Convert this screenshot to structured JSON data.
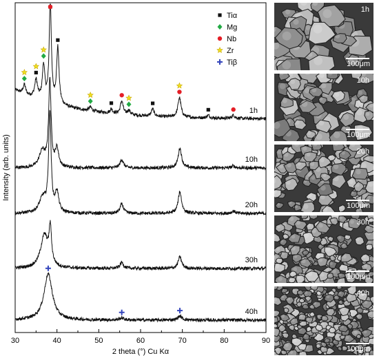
{
  "chart_data": {
    "type": "line",
    "xlabel": "2 theta (°) Cu Kα",
    "ylabel": "Intensity (arb. units)",
    "xlim": [
      30,
      90
    ],
    "x_ticks": [
      30,
      40,
      50,
      60,
      70,
      80,
      90
    ],
    "series": [
      {
        "name": "1h",
        "baseline": 0.88,
        "peaks": [
          {
            "x": 32.2,
            "h": 0.28,
            "w": 0.35
          },
          {
            "x": 35.0,
            "h": 0.55,
            "w": 0.4
          },
          {
            "x": 36.8,
            "h": 1.05,
            "w": 0.35
          },
          {
            "x": 38.4,
            "h": 3.1,
            "w": 0.3
          },
          {
            "x": 40.2,
            "h": 1.7,
            "w": 0.35
          },
          {
            "x": 48.0,
            "h": 0.12,
            "w": 0.4
          },
          {
            "x": 53.0,
            "h": 0.13,
            "w": 0.4
          },
          {
            "x": 55.5,
            "h": 0.4,
            "w": 0.4
          },
          {
            "x": 57.2,
            "h": 0.13,
            "w": 0.4
          },
          {
            "x": 62.9,
            "h": 0.22,
            "w": 0.4
          },
          {
            "x": 69.3,
            "h": 0.6,
            "w": 0.45
          },
          {
            "x": 76.2,
            "h": 0.08,
            "w": 0.4
          },
          {
            "x": 82.2,
            "h": 0.1,
            "w": 0.4
          }
        ]
      },
      {
        "name": "10h",
        "baseline": 0.0,
        "peaks": [
          {
            "x": 36.5,
            "h": 0.5,
            "w": 0.9
          },
          {
            "x": 38.3,
            "h": 2.6,
            "w": 0.35
          },
          {
            "x": 40.0,
            "h": 0.55,
            "w": 0.5
          },
          {
            "x": 55.5,
            "h": 0.25,
            "w": 0.5
          },
          {
            "x": 69.4,
            "h": 0.6,
            "w": 0.5
          },
          {
            "x": 82.2,
            "h": 0.06,
            "w": 0.5
          }
        ]
      },
      {
        "name": "20h",
        "baseline": 0.0,
        "peaks": [
          {
            "x": 36.6,
            "h": 0.45,
            "w": 1.0
          },
          {
            "x": 38.3,
            "h": 3.0,
            "w": 0.35
          },
          {
            "x": 40.0,
            "h": 0.6,
            "w": 0.5
          },
          {
            "x": 55.5,
            "h": 0.28,
            "w": 0.5
          },
          {
            "x": 69.4,
            "h": 0.65,
            "w": 0.5
          },
          {
            "x": 82.2,
            "h": 0.07,
            "w": 0.5
          }
        ]
      },
      {
        "name": "30h",
        "baseline": 0.0,
        "peaks": [
          {
            "x": 37.0,
            "h": 1.0,
            "w": 1.1
          },
          {
            "x": 38.4,
            "h": 1.05,
            "w": 0.35
          },
          {
            "x": 55.5,
            "h": 0.18,
            "w": 0.5
          },
          {
            "x": 69.4,
            "h": 0.35,
            "w": 0.5
          }
        ]
      },
      {
        "name": "40h",
        "baseline": 0.0,
        "peaks": [
          {
            "x": 37.9,
            "h": 1.4,
            "w": 1.2
          },
          {
            "x": 55.5,
            "h": 0.06,
            "w": 0.6
          },
          {
            "x": 69.4,
            "h": 0.12,
            "w": 0.6
          }
        ]
      }
    ],
    "legend": {
      "placement": "top-right",
      "entries": [
        {
          "label": "Tiα",
          "marker": "square",
          "color": "#111111"
        },
        {
          "label": "Mg",
          "marker": "diamond",
          "color": "#22aa44"
        },
        {
          "label": "Nb",
          "marker": "circle",
          "color": "#e41e26"
        },
        {
          "label": "Zr",
          "marker": "star",
          "color": "#f0e020"
        },
        {
          "label": "Tiβ",
          "marker": "plus",
          "color": "#3344bb"
        }
      ]
    },
    "annotations": [
      {
        "series": "1h",
        "x": 32.2,
        "markers": [
          "star",
          "diamond"
        ]
      },
      {
        "series": "1h",
        "x": 35.0,
        "markers": [
          "star",
          "square"
        ]
      },
      {
        "series": "1h",
        "x": 36.8,
        "markers": [
          "star",
          "diamond"
        ]
      },
      {
        "series": "1h",
        "x": 38.4,
        "markers": [
          "circle",
          "square"
        ]
      },
      {
        "series": "1h",
        "x": 40.2,
        "markers": [
          "square"
        ]
      },
      {
        "series": "1h",
        "x": 48.0,
        "markers": [
          "star",
          "diamond"
        ]
      },
      {
        "series": "1h",
        "x": 53.0,
        "markers": [
          "square"
        ]
      },
      {
        "series": "1h",
        "x": 55.5,
        "markers": [
          "circle"
        ]
      },
      {
        "series": "1h",
        "x": 57.2,
        "markers": [
          "star",
          "diamond"
        ]
      },
      {
        "series": "1h",
        "x": 62.9,
        "markers": [
          "square"
        ]
      },
      {
        "series": "1h",
        "x": 69.3,
        "markers": [
          "star",
          "circle"
        ]
      },
      {
        "series": "1h",
        "x": 76.2,
        "markers": [
          "square"
        ]
      },
      {
        "series": "1h",
        "x": 82.2,
        "markers": [
          "circle"
        ]
      },
      {
        "series": "40h",
        "x": 37.9,
        "markers": [
          "plus"
        ]
      },
      {
        "series": "40h",
        "x": 55.5,
        "markers": [
          "plus"
        ]
      },
      {
        "series": "40h",
        "x": 69.4,
        "markers": [
          "plus"
        ]
      }
    ]
  },
  "sem_panels": [
    {
      "time": "1h",
      "scale": "100μm"
    },
    {
      "time": "10h",
      "scale": "100μm"
    },
    {
      "time": "20h",
      "scale": "100μm"
    },
    {
      "time": "30h",
      "scale": "100μm"
    },
    {
      "time": "40h",
      "scale": "100μm"
    }
  ]
}
